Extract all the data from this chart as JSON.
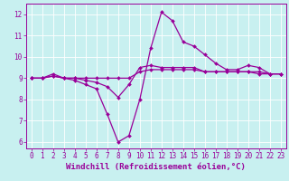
{
  "title": "",
  "xlabel": "Windchill (Refroidissement éolien,°C)",
  "ylabel": "",
  "bg_color": "#c8f0f0",
  "grid_color": "#aadddd",
  "line_color": "#990099",
  "xlim": [
    -0.5,
    23.5
  ],
  "ylim": [
    5.7,
    12.5
  ],
  "xticks": [
    0,
    1,
    2,
    3,
    4,
    5,
    6,
    7,
    8,
    9,
    10,
    11,
    12,
    13,
    14,
    15,
    16,
    17,
    18,
    19,
    20,
    21,
    22,
    23
  ],
  "yticks": [
    6,
    7,
    8,
    9,
    10,
    11,
    12
  ],
  "line1": {
    "x": [
      0,
      1,
      2,
      3,
      4,
      5,
      6,
      7,
      8,
      9,
      10,
      11,
      12,
      13,
      14,
      15,
      16,
      17,
      18,
      19,
      20,
      21,
      22,
      23
    ],
    "y": [
      9.0,
      9.0,
      9.2,
      9.0,
      8.9,
      8.7,
      8.5,
      7.3,
      6.0,
      6.3,
      8.0,
      10.4,
      12.1,
      11.7,
      10.7,
      10.5,
      10.1,
      9.7,
      9.4,
      9.4,
      9.6,
      9.5,
      9.2,
      9.2
    ]
  },
  "line2": {
    "x": [
      0,
      1,
      2,
      3,
      4,
      5,
      6,
      7,
      8,
      9,
      10,
      11,
      12,
      13,
      14,
      15,
      16,
      17,
      18,
      19,
      20,
      21,
      22,
      23
    ],
    "y": [
      9.0,
      9.0,
      9.1,
      9.0,
      9.0,
      9.0,
      9.0,
      9.0,
      9.0,
      9.0,
      9.3,
      9.4,
      9.4,
      9.4,
      9.4,
      9.4,
      9.3,
      9.3,
      9.3,
      9.3,
      9.3,
      9.3,
      9.2,
      9.2
    ]
  },
  "line3": {
    "x": [
      0,
      1,
      2,
      3,
      4,
      5,
      6,
      7,
      8,
      9,
      10,
      11,
      12,
      13,
      14,
      15,
      16,
      17,
      18,
      19,
      20,
      21,
      22,
      23
    ],
    "y": [
      9.0,
      9.0,
      9.1,
      9.0,
      9.0,
      8.9,
      8.8,
      8.6,
      8.1,
      8.7,
      9.5,
      9.6,
      9.5,
      9.5,
      9.5,
      9.5,
      9.3,
      9.3,
      9.3,
      9.3,
      9.3,
      9.2,
      9.2,
      9.2
    ]
  },
  "font_size_tick": 5.5,
  "font_size_label": 6.5,
  "marker_size": 2.0,
  "line_width": 0.9
}
